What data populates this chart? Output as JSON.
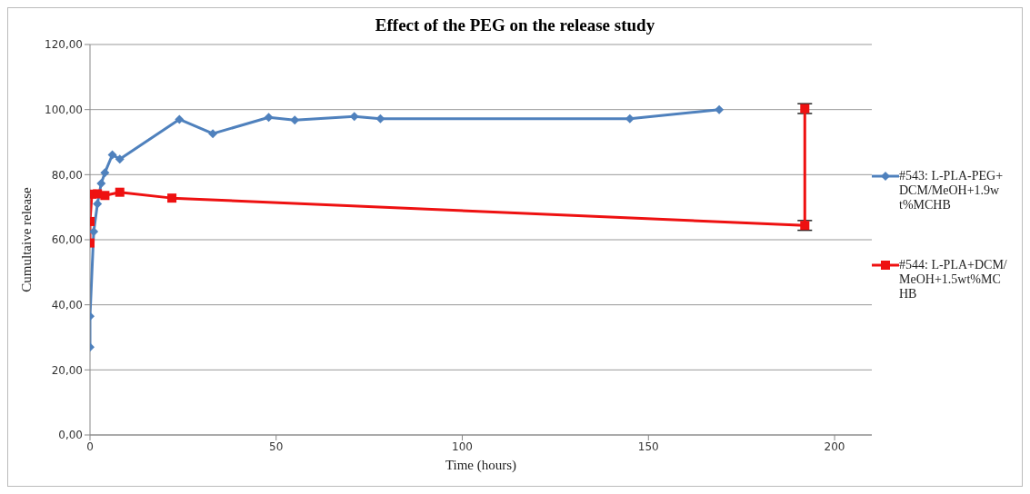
{
  "chart_data": {
    "type": "line",
    "title": "Effect of the PEG on the release study",
    "xlabel": "Time (hours)",
    "ylabel": "Cumultaive release",
    "xlim": [
      0,
      210
    ],
    "xticks": [
      0,
      50,
      100,
      150,
      200
    ],
    "ylim": [
      0,
      120
    ],
    "yticks": [
      {
        "value": 0,
        "label": "0,00"
      },
      {
        "value": 20,
        "label": "20,00"
      },
      {
        "value": 40,
        "label": "40,00"
      },
      {
        "value": 60,
        "label": "60,00"
      },
      {
        "value": 80,
        "label": "80,00"
      },
      {
        "value": 100,
        "label": "100,00"
      },
      {
        "value": 120,
        "label": "120,00"
      }
    ],
    "grid": "y",
    "legend": "right",
    "line_style": "solid",
    "series": [
      {
        "name": "#543: L-PLA-PEG+DCM/MeOH+1.9wt%MCHB",
        "color": "#4f81bd",
        "marker": "diamond",
        "x": [
          0,
          0,
          1,
          2,
          3,
          4,
          6,
          8,
          24,
          33,
          48,
          55,
          71,
          78,
          145,
          169
        ],
        "values": [
          27,
          36.5,
          62.5,
          71,
          77.3,
          80.6,
          86.1,
          84.8,
          97,
          92.6,
          97.6,
          96.8,
          97.9,
          97.2,
          97.2,
          100
        ]
      },
      {
        "name": "#544: L-PLA+DCM/MeOH+1.5wt%MCHB",
        "color": "#ee1111",
        "marker": "square",
        "x": [
          0,
          0,
          0.5,
          2,
          4,
          8,
          22,
          192,
          192
        ],
        "values": [
          59,
          65.6,
          74,
          74.1,
          73.6,
          74.6,
          72.8,
          64.4,
          100.3
        ],
        "errors": [
          null,
          null,
          null,
          null,
          null,
          null,
          null,
          1.5,
          1.5
        ]
      }
    ]
  }
}
